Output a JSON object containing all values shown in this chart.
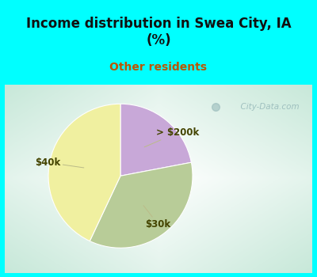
{
  "title": "Income distribution in Swea City, IA\n(%)",
  "subtitle": "Other residents",
  "title_color": "#111111",
  "subtitle_color": "#bb5500",
  "title_bg_color": "#00FFFF",
  "slices": [
    {
      "label": "> $200k",
      "value": 22,
      "color": "#c8a8d8"
    },
    {
      "label": "$30k",
      "value": 35,
      "color": "#b8cc98"
    },
    {
      "label": "$40k",
      "value": 43,
      "color": "#f0f0a0"
    }
  ],
  "startangle": 90,
  "watermark": "  City-Data.com",
  "watermark_color": "#99bbbb",
  "label_color": "#444400",
  "label_fontsize": 8.5,
  "border_color": "#00FFFF",
  "border_width": 6
}
